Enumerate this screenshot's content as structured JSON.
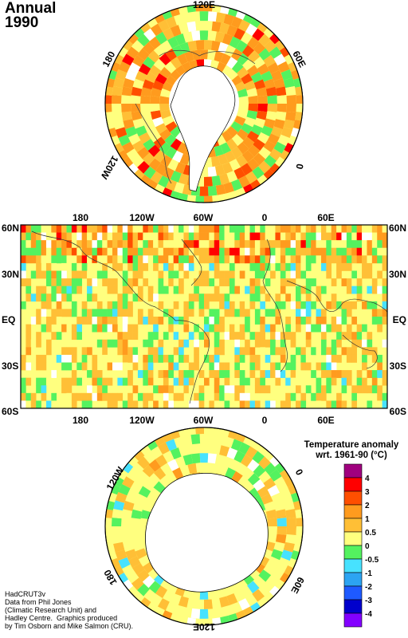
{
  "title": {
    "line1": "Annual",
    "line2": "1990"
  },
  "north_polar": {
    "labels": [
      "120E",
      "60E",
      "0",
      "120W",
      "180"
    ]
  },
  "map": {
    "lon_top": [
      "180",
      "120W",
      "60W",
      "0",
      "60E"
    ],
    "lon_bottom": [
      "180",
      "120W",
      "60W",
      "0",
      "60E"
    ],
    "lat_left": [
      "60N",
      "30N",
      "EQ",
      "30S",
      "60S"
    ],
    "lat_right": [
      "60N",
      "30N",
      "EQ",
      "30S",
      "60S"
    ]
  },
  "south_polar": {
    "labels": [
      "120W",
      "0",
      "60E",
      "120E",
      "180"
    ]
  },
  "legend": {
    "title_line1": "Temperature anomaly",
    "title_line2": "wrt. 1961-90  (°C)",
    "levels": [
      "4",
      "3",
      "2",
      "1",
      "0.5",
      "0",
      "-0.5",
      "-1",
      "-2",
      "-3",
      "-4"
    ],
    "colors": [
      "#a0007f",
      "#ff0000",
      "#ff4f00",
      "#ff9b1e",
      "#ffbf36",
      "#ffff7f",
      "#54f25f",
      "#47e2ff",
      "#2ca4f2",
      "#1e5aff",
      "#0000cc",
      "#8300ff"
    ]
  },
  "credits": "HadCRUT3v\nData from Phil Jones\n(Climatic Research Unit) and\nHadley Centre.  Graphics produced\nby Tim Osborn and Mike Salmon (CRU)."
}
